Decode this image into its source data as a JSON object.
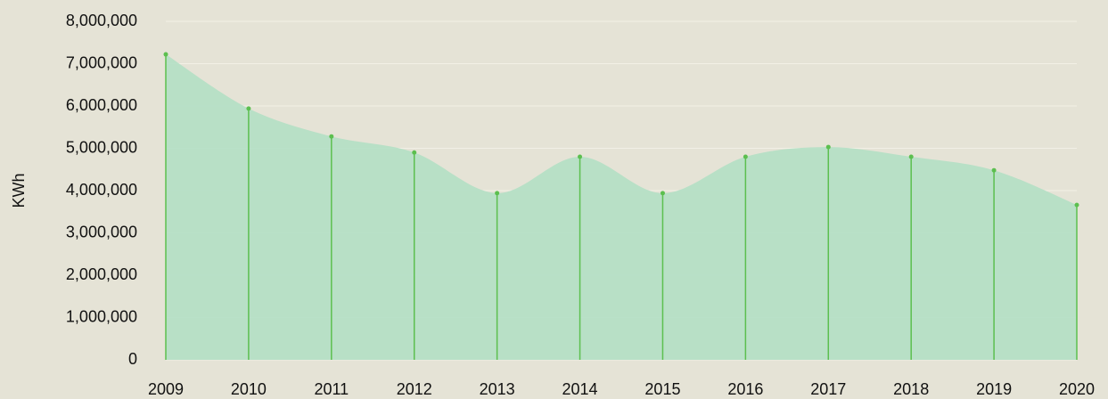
{
  "chart_data": {
    "type": "area",
    "y_label": "KWh",
    "categories": [
      "2009",
      "2010",
      "2011",
      "2012",
      "2013",
      "2014",
      "2015",
      "2016",
      "2017",
      "2018",
      "2019",
      "2020"
    ],
    "values": [
      7220000,
      5940000,
      5280000,
      4900000,
      3940000,
      4800000,
      3940000,
      4800000,
      5030000,
      4800000,
      4480000,
      3660000
    ],
    "color": "#5cbf4f",
    "fill": "#b3dfc4",
    "ylim": [
      0,
      8000000
    ],
    "yticks": [
      {
        "value": 0,
        "label": "0"
      },
      {
        "value": 1000000,
        "label": "1,000,000"
      },
      {
        "value": 2000000,
        "label": "2,000,000"
      },
      {
        "value": 3000000,
        "label": "3,000,000"
      },
      {
        "value": 4000000,
        "label": "4,000,000"
      },
      {
        "value": 5000000,
        "label": "5,000,000"
      },
      {
        "value": 6000000,
        "label": "6,000,000"
      },
      {
        "value": 7000000,
        "label": "7,000,000"
      },
      {
        "value": 8000000,
        "label": "8,000,000"
      }
    ],
    "grid": true
  }
}
